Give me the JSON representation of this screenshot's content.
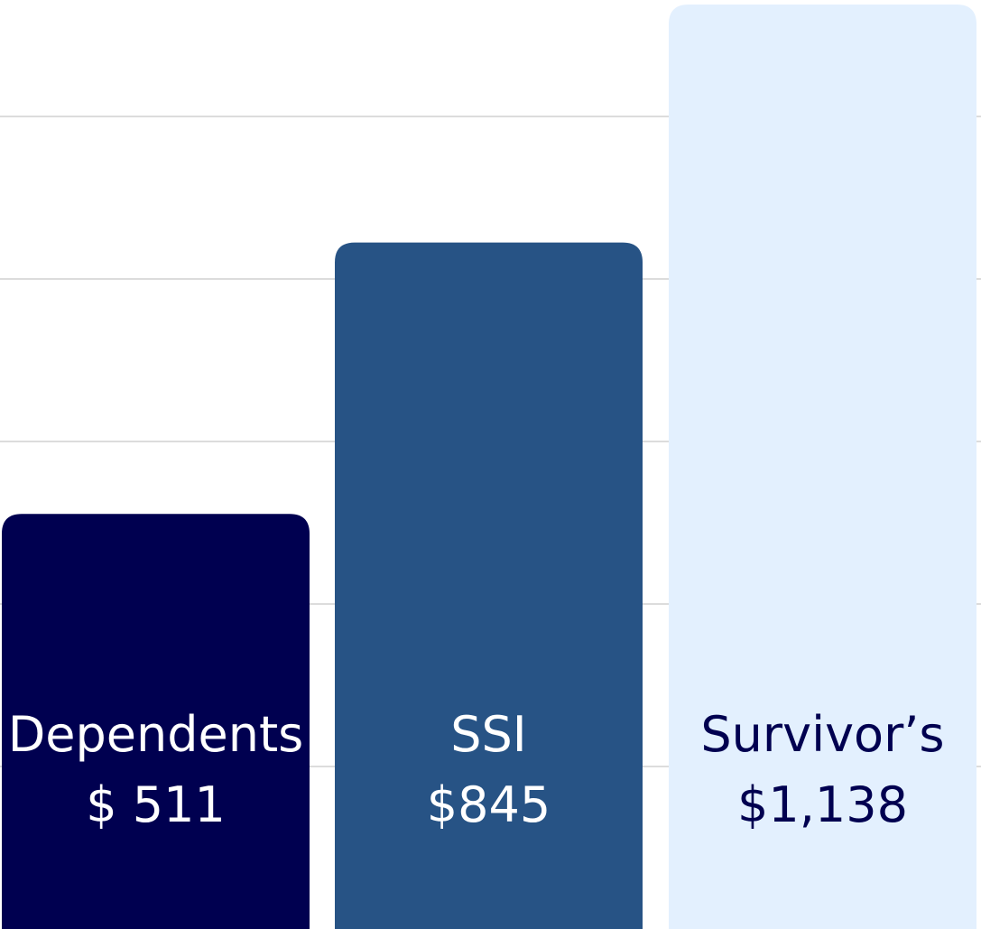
{
  "chart_data": {
    "type": "bar",
    "categories": [
      "Dependents",
      "SSI",
      "Survivor’s"
    ],
    "values": [
      511,
      845,
      1138
    ],
    "value_labels": [
      "$ 511",
      "$845",
      "$1,138"
    ],
    "ylim": [
      0,
      1138
    ],
    "grid": true,
    "legend": "none",
    "colors": {
      "bars": [
        "#000050",
        "#275385",
        "#e3f0fe"
      ],
      "label_text": [
        "#ffffff",
        "#ffffff",
        "#000050"
      ],
      "grid": "#dcdcdc"
    }
  }
}
